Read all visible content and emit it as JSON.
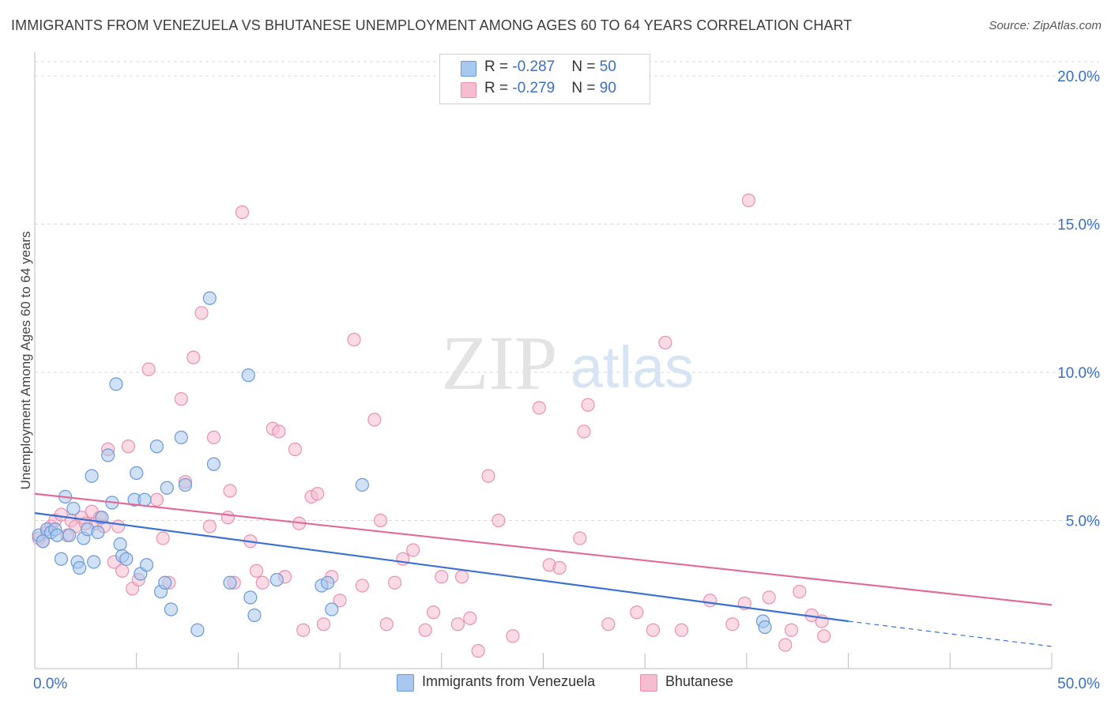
{
  "header": {
    "title": "IMMIGRANTS FROM VENEZUELA VS BHUTANESE UNEMPLOYMENT AMONG AGES 60 TO 64 YEARS CORRELATION CHART",
    "source": "Source: ZipAtlas.com"
  },
  "watermark": {
    "zip": "ZIP",
    "atlas": "atlas"
  },
  "legend": {
    "rows": [
      {
        "r_label": "R = ",
        "r_value": "-0.287",
        "n_label": "N = ",
        "n_value": "50"
      },
      {
        "r_label": "R = ",
        "r_value": "-0.279",
        "n_label": "N = ",
        "n_value": "90"
      }
    ]
  },
  "bottom_legend": [
    "Immigrants from Venezuela",
    "Bhutanese"
  ],
  "colors": {
    "venezuela_fill": "#a9c8ef",
    "venezuela_stroke": "#6a9ad8",
    "venezuela_line": "#3a70d0",
    "bhutanese_fill": "#f6bcd0",
    "bhutanese_stroke": "#e892b0",
    "bhutanese_line": "#e06a98",
    "tick_label": "#3a6fc4",
    "grid": "#d8d8d8"
  },
  "chart_data": {
    "type": "scatter",
    "title": "IMMIGRANTS FROM VENEZUELA VS BHUTANESE UNEMPLOYMENT AMONG AGES 60 TO 64 YEARS CORRELATION CHART",
    "xlabel": "",
    "ylabel": "Unemployment Among Ages 60 to 64 years",
    "xlim": [
      0,
      50
    ],
    "ylim": [
      0,
      20
    ],
    "x_tick_labels": [
      "0.0%",
      "50.0%"
    ],
    "y_ticks": [
      5,
      10,
      15,
      20
    ],
    "y_tick_labels": [
      "5.0%",
      "10.0%",
      "15.0%",
      "20.0%"
    ],
    "grid": true,
    "legend_position": "top-center",
    "series": [
      {
        "name": "Immigrants from Venezuela",
        "R": -0.287,
        "N": 50,
        "trend": {
          "x": [
            0,
            40
          ],
          "y": [
            5.25,
            1.6
          ],
          "dashed_x": [
            40,
            50
          ],
          "dashed_y": [
            1.6,
            0.75
          ]
        },
        "points": [
          [
            0.2,
            4.5
          ],
          [
            0.4,
            4.3
          ],
          [
            0.6,
            4.7
          ],
          [
            0.8,
            4.6
          ],
          [
            1.0,
            4.7
          ],
          [
            1.1,
            4.5
          ],
          [
            1.3,
            3.7
          ],
          [
            1.5,
            5.8
          ],
          [
            1.7,
            4.5
          ],
          [
            1.9,
            5.4
          ],
          [
            2.1,
            3.6
          ],
          [
            2.2,
            3.4
          ],
          [
            2.4,
            4.4
          ],
          [
            2.6,
            4.7
          ],
          [
            2.8,
            6.5
          ],
          [
            2.9,
            3.6
          ],
          [
            3.1,
            4.6
          ],
          [
            3.3,
            5.1
          ],
          [
            3.6,
            7.2
          ],
          [
            3.8,
            5.6
          ],
          [
            4.0,
            9.6
          ],
          [
            4.2,
            4.2
          ],
          [
            4.3,
            3.8
          ],
          [
            4.5,
            3.7
          ],
          [
            4.9,
            5.7
          ],
          [
            5.0,
            6.6
          ],
          [
            5.2,
            3.2
          ],
          [
            5.4,
            5.7
          ],
          [
            5.5,
            3.5
          ],
          [
            6.0,
            7.5
          ],
          [
            6.2,
            2.6
          ],
          [
            6.4,
            2.9
          ],
          [
            6.5,
            6.1
          ],
          [
            6.7,
            2.0
          ],
          [
            7.2,
            7.8
          ],
          [
            7.4,
            6.2
          ],
          [
            8.0,
            1.3
          ],
          [
            8.6,
            12.5
          ],
          [
            8.8,
            6.9
          ],
          [
            9.6,
            2.9
          ],
          [
            10.5,
            9.9
          ],
          [
            10.6,
            2.4
          ],
          [
            10.8,
            1.8
          ],
          [
            11.9,
            3.0
          ],
          [
            14.1,
            2.8
          ],
          [
            14.4,
            2.9
          ],
          [
            14.6,
            2.0
          ],
          [
            16.1,
            6.2
          ],
          [
            35.8,
            1.6
          ],
          [
            35.9,
            1.4
          ]
        ]
      },
      {
        "name": "Bhutanese",
        "R": -0.279,
        "N": 90,
        "trend": {
          "x": [
            0,
            50
          ],
          "y": [
            5.9,
            2.15
          ]
        },
        "points": [
          [
            0.2,
            4.4
          ],
          [
            0.4,
            4.3
          ],
          [
            0.6,
            4.6
          ],
          [
            0.8,
            4.8
          ],
          [
            1.0,
            5.0
          ],
          [
            1.3,
            5.2
          ],
          [
            1.6,
            4.5
          ],
          [
            1.8,
            5.0
          ],
          [
            2.0,
            4.8
          ],
          [
            2.3,
            5.1
          ],
          [
            2.5,
            4.9
          ],
          [
            2.8,
            5.3
          ],
          [
            3.0,
            4.9
          ],
          [
            3.2,
            5.1
          ],
          [
            3.4,
            4.8
          ],
          [
            3.6,
            7.4
          ],
          [
            3.9,
            3.6
          ],
          [
            4.1,
            4.8
          ],
          [
            4.3,
            3.3
          ],
          [
            4.6,
            7.5
          ],
          [
            4.8,
            2.7
          ],
          [
            5.1,
            3.0
          ],
          [
            5.6,
            10.1
          ],
          [
            6.0,
            5.7
          ],
          [
            6.3,
            4.4
          ],
          [
            6.6,
            2.9
          ],
          [
            7.2,
            9.1
          ],
          [
            7.4,
            6.3
          ],
          [
            7.8,
            10.5
          ],
          [
            8.2,
            12.0
          ],
          [
            8.6,
            4.8
          ],
          [
            8.8,
            7.8
          ],
          [
            9.5,
            5.1
          ],
          [
            9.6,
            6.0
          ],
          [
            9.8,
            2.9
          ],
          [
            10.2,
            15.4
          ],
          [
            10.6,
            4.3
          ],
          [
            10.9,
            3.3
          ],
          [
            11.2,
            2.9
          ],
          [
            11.7,
            8.1
          ],
          [
            12.0,
            8.0
          ],
          [
            12.3,
            3.1
          ],
          [
            12.8,
            7.4
          ],
          [
            13.0,
            4.9
          ],
          [
            13.2,
            1.3
          ],
          [
            13.6,
            5.8
          ],
          [
            13.9,
            5.9
          ],
          [
            14.2,
            1.5
          ],
          [
            14.6,
            3.1
          ],
          [
            15.0,
            2.3
          ],
          [
            15.7,
            11.1
          ],
          [
            16.1,
            2.8
          ],
          [
            16.7,
            8.4
          ],
          [
            17.0,
            5.0
          ],
          [
            17.3,
            1.5
          ],
          [
            17.7,
            2.9
          ],
          [
            18.1,
            3.7
          ],
          [
            18.6,
            4.0
          ],
          [
            19.2,
            1.3
          ],
          [
            19.6,
            1.9
          ],
          [
            20.0,
            3.1
          ],
          [
            20.8,
            1.5
          ],
          [
            21.0,
            3.1
          ],
          [
            21.4,
            1.7
          ],
          [
            21.8,
            0.6
          ],
          [
            22.3,
            6.5
          ],
          [
            22.8,
            5.0
          ],
          [
            23.5,
            1.1
          ],
          [
            24.8,
            8.8
          ],
          [
            25.3,
            3.5
          ],
          [
            25.8,
            3.4
          ],
          [
            26.8,
            4.4
          ],
          [
            27.0,
            8.0
          ],
          [
            27.2,
            8.9
          ],
          [
            28.2,
            1.5
          ],
          [
            29.6,
            1.9
          ],
          [
            30.4,
            1.3
          ],
          [
            31.0,
            11.0
          ],
          [
            31.8,
            1.3
          ],
          [
            33.2,
            2.3
          ],
          [
            34.3,
            1.5
          ],
          [
            34.9,
            2.2
          ],
          [
            35.1,
            15.8
          ],
          [
            36.1,
            2.4
          ],
          [
            36.9,
            0.8
          ],
          [
            37.6,
            2.6
          ],
          [
            38.2,
            1.8
          ],
          [
            37.2,
            1.3
          ],
          [
            38.7,
            1.6
          ],
          [
            38.8,
            1.1
          ]
        ]
      }
    ]
  }
}
